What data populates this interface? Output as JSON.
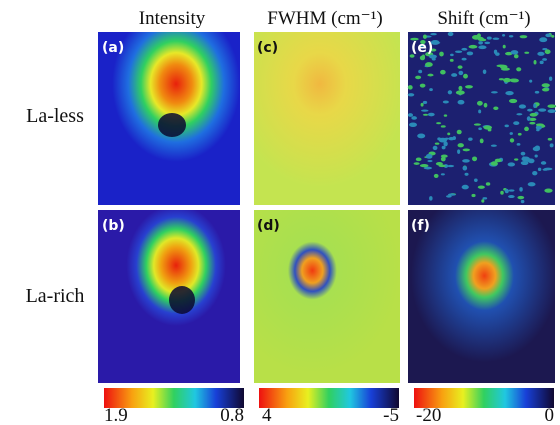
{
  "columns": [
    "Intensity",
    "FWHM (cm⁻¹)",
    "Shift (cm⁻¹)"
  ],
  "rows": [
    "La-less",
    "La-rich"
  ],
  "panels": [
    "(a)",
    "(b)",
    "(c)",
    "(d)",
    "(e)",
    "(f)"
  ],
  "colorbars": [
    {
      "left": "1.9",
      "right": "0.8"
    },
    {
      "left": "4",
      "right": "-5"
    },
    {
      "left": "-20",
      "right": "0"
    }
  ]
}
